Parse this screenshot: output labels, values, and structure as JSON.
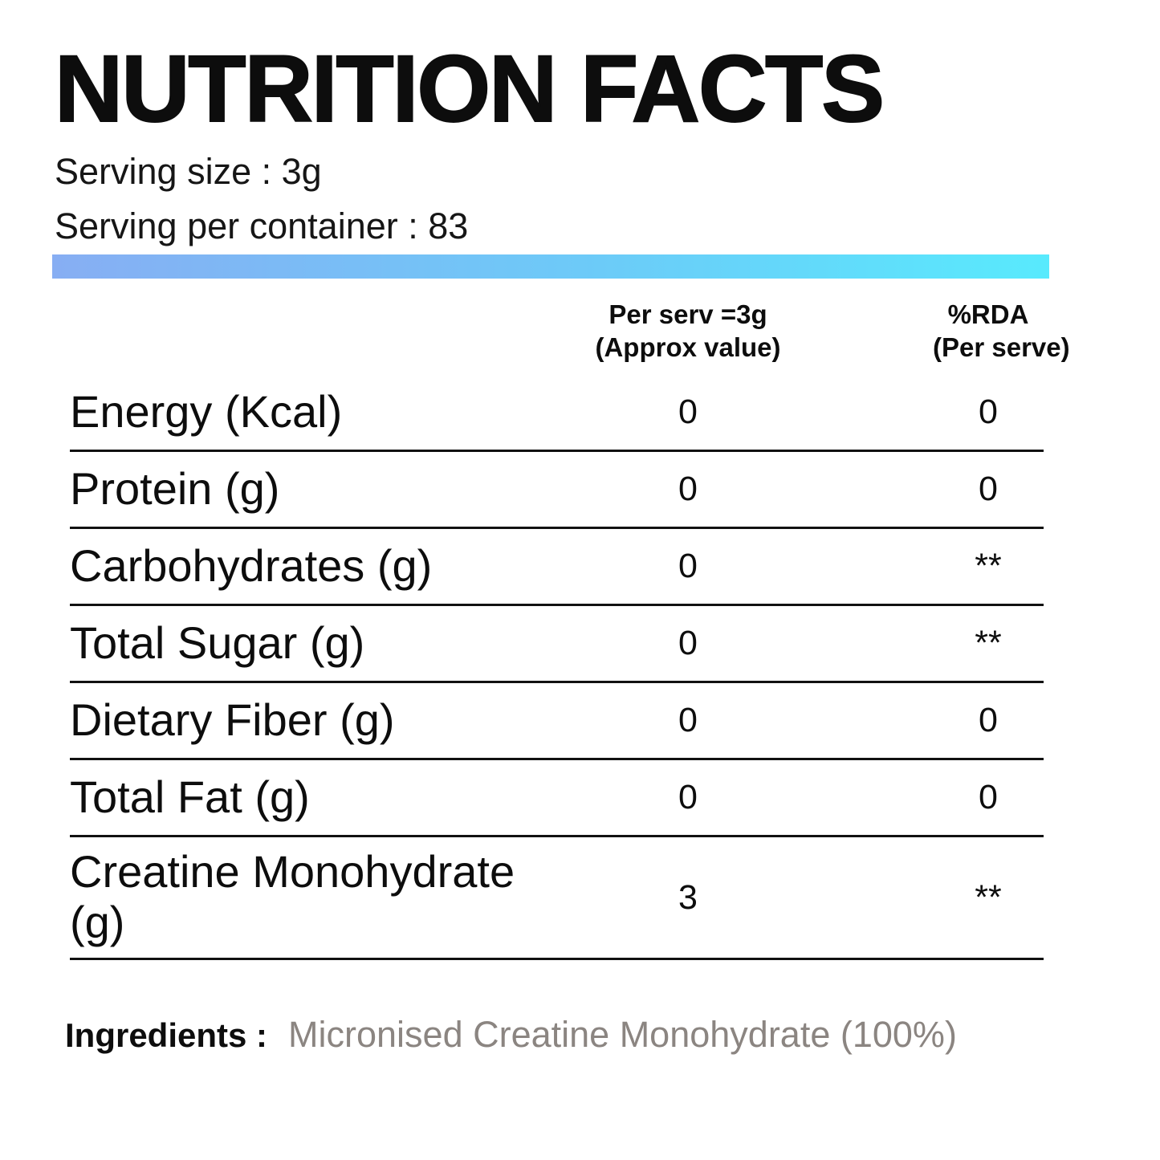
{
  "title": "NUTRITION FACTS",
  "serving": {
    "size_label": "Serving size : 3g",
    "per_container_label": "Serving per container : 83"
  },
  "colors": {
    "bar_gradient_left": "#87aef3",
    "bar_gradient_mid": "#6ccbf8",
    "bar_gradient_right": "#58eafd",
    "text": "#0d0d0d",
    "ingredients_value_text": "#8b8581"
  },
  "table": {
    "headers": {
      "per_serv_line1": "Per serv =3g",
      "per_serv_line2": "(Approx value)",
      "rda_line1": "%RDA",
      "rda_line2": "(Per serve)"
    },
    "rows": [
      {
        "label": "Energy (Kcal)",
        "per_serv": "0",
        "rda": "0"
      },
      {
        "label": "Protein (g)",
        "per_serv": "0",
        "rda": "0"
      },
      {
        "label": "Carbohydrates (g)",
        "per_serv": "0",
        "rda": "**"
      },
      {
        "label": "Total Sugar (g)",
        "per_serv": "0",
        "rda": "**"
      },
      {
        "label": "Dietary Fiber (g)",
        "per_serv": "0",
        "rda": "0"
      },
      {
        "label": "Total Fat (g)",
        "per_serv": "0",
        "rda": "0"
      },
      {
        "label": "Creatine Monohydrate (g)",
        "per_serv": "3",
        "rda": "**"
      }
    ]
  },
  "ingredients": {
    "label": "Ingredients :",
    "value": "Micronised Creatine Monohydrate (100%)"
  }
}
